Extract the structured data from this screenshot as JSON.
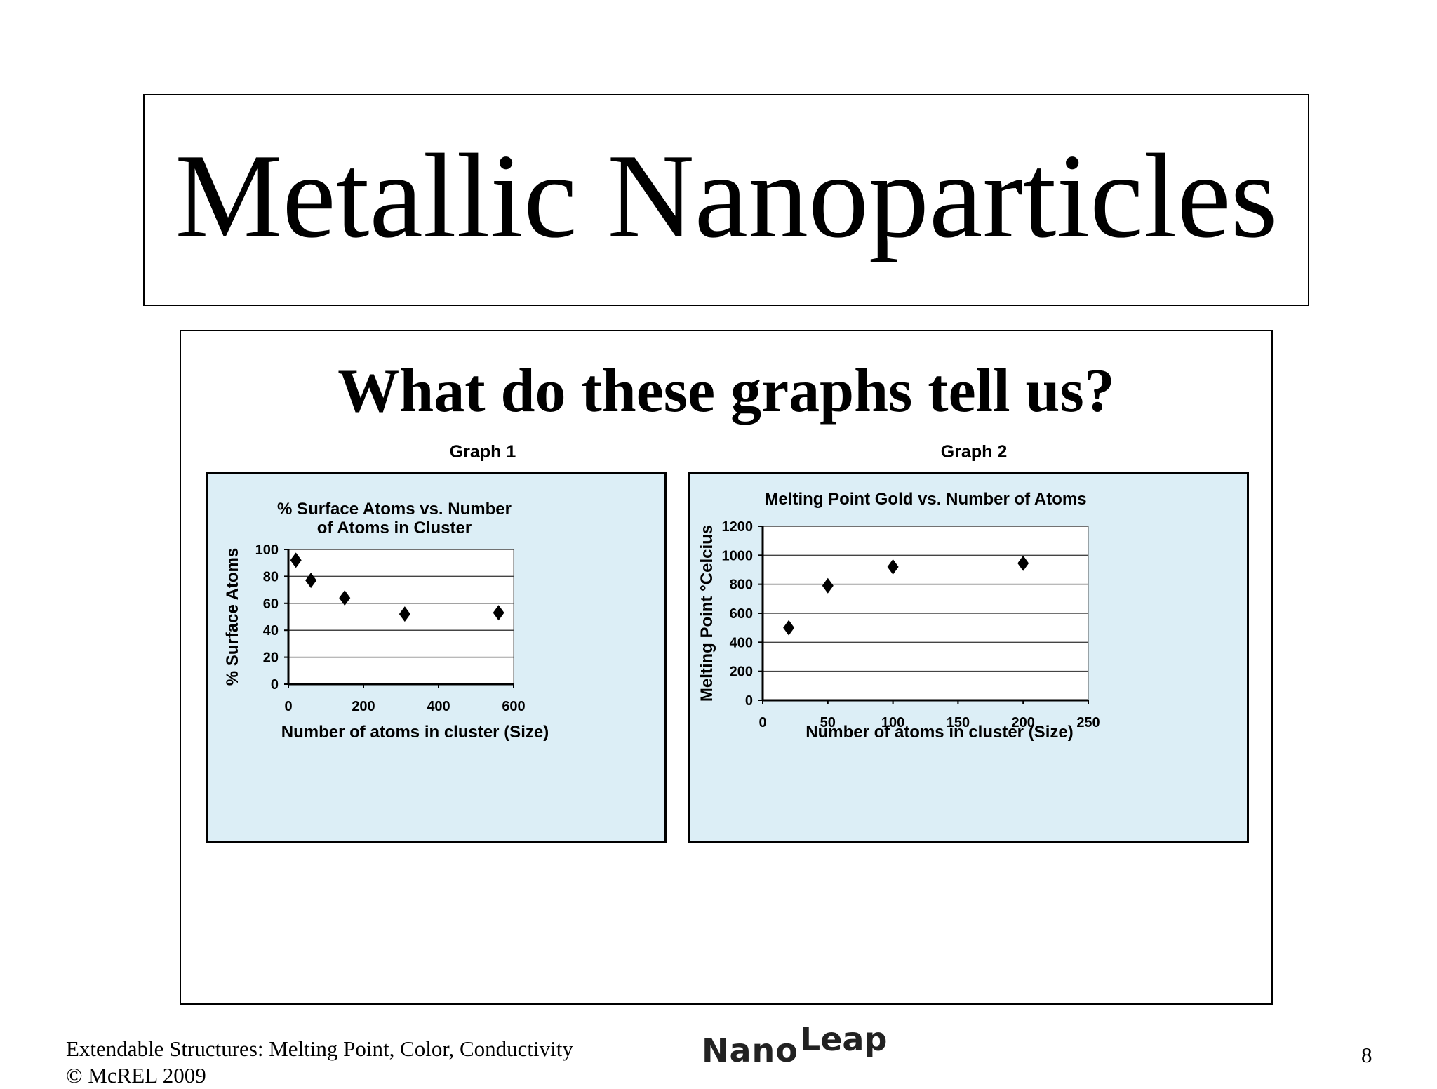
{
  "slide": {
    "title": "Metallic Nanoparticles",
    "question": "What do these graphs tell us?",
    "footer_line1": "Extendable Structures: Melting Point, Color, Conductivity",
    "footer_line2": "© McREL 2009",
    "logo_nano": "Nano",
    "logo_leap": "Leap",
    "page_number": "8",
    "colors": {
      "panel_bg": "#dceef6",
      "marker": "#000000"
    }
  },
  "graphs": [
    {
      "label": "Graph 1"
    },
    {
      "label": "Graph 2"
    }
  ],
  "chart_data": [
    {
      "type": "scatter",
      "title": [
        "% Surface Atoms vs. Number",
        "of Atoms in Cluster"
      ],
      "xlabel": "Number of atoms in cluster (Size)",
      "ylabel": "% Surface Atoms",
      "xlim": [
        0,
        600
      ],
      "ylim": [
        0,
        100
      ],
      "xticks": [
        0,
        200,
        400,
        600
      ],
      "yticks": [
        0,
        20,
        40,
        60,
        80,
        100
      ],
      "grid": "horizontal",
      "marker": "diamond",
      "points": [
        [
          20,
          92
        ],
        [
          60,
          77
        ],
        [
          150,
          64
        ],
        [
          310,
          52
        ],
        [
          560,
          53
        ]
      ]
    },
    {
      "type": "scatter",
      "title": [
        "Melting Point Gold vs. Number of Atoms"
      ],
      "xlabel": "Number of atoms in cluster (Size)",
      "ylabel": "Melting Point  °Celcius",
      "xlim": [
        0,
        250
      ],
      "ylim": [
        0,
        1200
      ],
      "xticks": [
        0,
        50,
        100,
        150,
        200,
        250
      ],
      "yticks": [
        0,
        200,
        400,
        600,
        800,
        1000,
        1200
      ],
      "grid": "horizontal",
      "marker": "diamond",
      "points": [
        [
          20,
          500
        ],
        [
          50,
          790
        ],
        [
          100,
          920
        ],
        [
          200,
          945
        ]
      ]
    }
  ]
}
